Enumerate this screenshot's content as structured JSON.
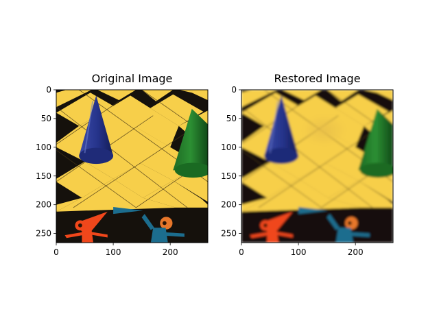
{
  "chart_data": [
    {
      "type": "image",
      "title": "Original Image",
      "xlim": [
        0,
        266
      ],
      "ylim": [
        266,
        0
      ],
      "x_ticks": [
        0,
        100,
        200
      ],
      "y_ticks": [
        0,
        50,
        100,
        150,
        200,
        250
      ],
      "grid": false,
      "variant": "sharp"
    },
    {
      "type": "image",
      "title": "Restored Image",
      "xlim": [
        0,
        266
      ],
      "ylim": [
        266,
        0
      ],
      "x_ticks": [
        0,
        100,
        200
      ],
      "y_ticks": [
        0,
        50,
        100,
        150,
        200,
        250
      ],
      "grid": false,
      "variant": "blurred"
    }
  ],
  "colors": {
    "board_yellow": "#f7cf4a",
    "board_dark": "#15110c",
    "cone_blue": "#26348a",
    "cone_green": "#1f7a2a",
    "figure_orange": "#f0471b",
    "figure_blue": "#1c6d8e"
  }
}
